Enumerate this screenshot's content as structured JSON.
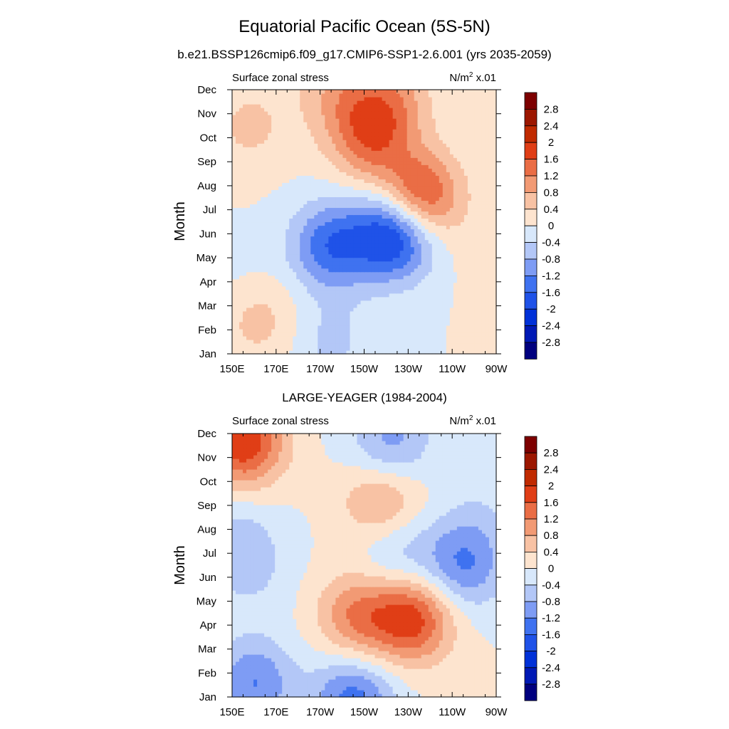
{
  "figure": {
    "title": "Equatorial Pacific Ocean (5S-5N)",
    "subtitle": "b.e21.BSSP126cmip6.f09_g17.CMIP6-SSP1-2.6.001 (yrs 2035-2059)"
  },
  "chart_data": [
    {
      "type": "heatmap",
      "panel_title": "",
      "left_label": "Surface zonal stress",
      "units_base": "N/m",
      "units_sup": "2",
      "units_scale": "x.01",
      "ylabel": "Month",
      "x_ticks": [
        "150E",
        "170E",
        "170W",
        "150W",
        "130W",
        "110W",
        "90W"
      ],
      "y_ticks": [
        "Jan",
        "Feb",
        "Mar",
        "Apr",
        "May",
        "Jun",
        "Jul",
        "Aug",
        "Sep",
        "Oct",
        "Nov",
        "Dec"
      ],
      "x_range_deg_east": [
        150,
        270
      ],
      "colorbar_levels": [
        "2.8",
        "2.4",
        "2",
        "1.6",
        "1.2",
        "0.8",
        "0.4",
        "0",
        "-0.4",
        "-0.8",
        "-1.2",
        "-1.6",
        "-2",
        "-2.4",
        "-2.8"
      ],
      "approx_features": [
        {
          "lon": 195,
          "month": 5.5,
          "value": -1.5
        },
        {
          "lon": 224,
          "month": 6.0,
          "value": -2.3
        },
        {
          "lon": 235,
          "month": 7.5,
          "value": 2.0
        },
        {
          "lon": 212,
          "month": 10.0,
          "value": 1.3
        },
        {
          "lon": 222,
          "month": 11.5,
          "value": 0.9
        },
        {
          "lon": 198,
          "month": 12.0,
          "value": 0.7
        },
        {
          "lon": 158,
          "month": 10.5,
          "value": 0.5
        },
        {
          "lon": 162,
          "month": 2.5,
          "value": 0.6
        },
        {
          "lon": 195,
          "month": 1.5,
          "value": -0.5
        },
        {
          "lon": 153,
          "month": 4.0,
          "value": -0.2
        },
        {
          "lon": 262,
          "month": 5.0,
          "value": 0.1
        }
      ]
    },
    {
      "type": "heatmap",
      "panel_title": "LARGE-YEAGER (1984-2004)",
      "left_label": "Surface zonal stress",
      "units_base": "N/m",
      "units_sup": "2",
      "units_scale": "x.01",
      "ylabel": "Month",
      "x_ticks": [
        "150E",
        "170E",
        "170W",
        "150W",
        "130W",
        "110W",
        "90W"
      ],
      "y_ticks": [
        "Jan",
        "Feb",
        "Mar",
        "Apr",
        "May",
        "Jun",
        "Jul",
        "Aug",
        "Sep",
        "Oct",
        "Nov",
        "Dec"
      ],
      "x_range_deg_east": [
        150,
        270
      ],
      "colorbar_levels": [
        "2.8",
        "2.4",
        "2",
        "1.6",
        "1.2",
        "0.8",
        "0.4",
        "0",
        "-0.4",
        "-0.8",
        "-1.2",
        "-1.6",
        "-2",
        "-2.4",
        "-2.8"
      ],
      "approx_features": [
        {
          "lon": 160,
          "month": 1.6,
          "value": -1.2
        },
        {
          "lon": 205,
          "month": 0.9,
          "value": -1.4
        },
        {
          "lon": 232,
          "month": 4.3,
          "value": 1.8
        },
        {
          "lon": 207,
          "month": 4.4,
          "value": 1.2
        },
        {
          "lon": 255,
          "month": 6.5,
          "value": -1.2
        },
        {
          "lon": 225,
          "month": 7.0,
          "value": -0.7
        },
        {
          "lon": 218,
          "month": 9.2,
          "value": 1.0
        },
        {
          "lon": 222,
          "month": 11.6,
          "value": -1.0
        },
        {
          "lon": 155,
          "month": 11.7,
          "value": 2.0
        },
        {
          "lon": 152,
          "month": 7.5,
          "value": -0.6
        },
        {
          "lon": 262,
          "month": 8.5,
          "value": -0.3
        },
        {
          "lon": 160,
          "month": 6.0,
          "value": -0.3
        }
      ]
    }
  ]
}
